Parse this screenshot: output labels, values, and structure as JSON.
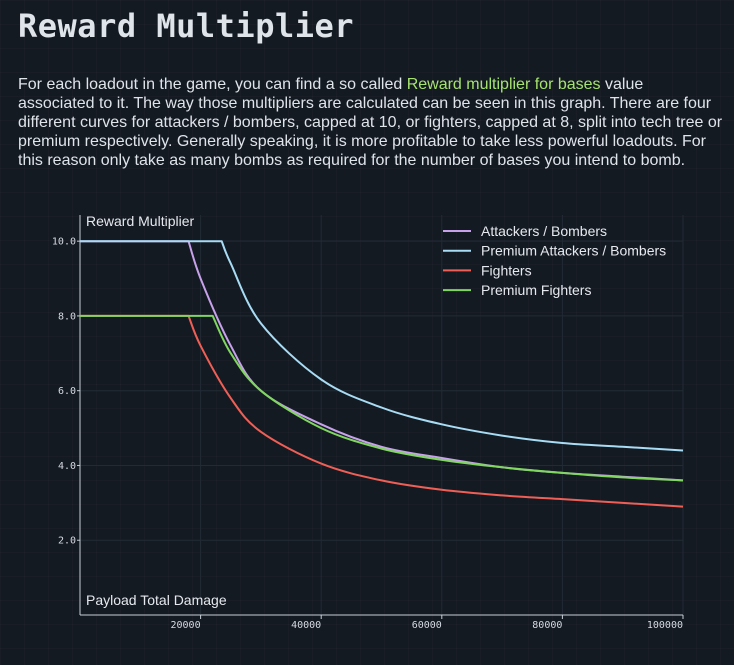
{
  "header": {
    "title": "Reward Multiplier"
  },
  "intro": {
    "text_before": "For each loadout in the game, you can find a so called ",
    "highlight": "Reward multiplier for bases",
    "text_after": " value associated to it. The way those multipliers are calculated can be seen in this graph. There are four different curves for attackers / bombers, capped at 10, or fighters, capped at 8, split into tech tree or premium respectively. Generally speaking, it is more profitable to take less powerful loadouts. For this reason only take as many bombs as required for the number of bases you intend to bomb.",
    "highlight_color": "#a6e36e"
  },
  "chart_data": {
    "type": "line",
    "title": "",
    "xlabel": "Payload Total Damage",
    "ylabel": "Reward Multiplier",
    "xlim": [
      0,
      100000
    ],
    "ylim": [
      0,
      10.7
    ],
    "xticks": [
      20000,
      40000,
      60000,
      80000,
      100000
    ],
    "xtick_labels": [
      "20000",
      "40000",
      "60000",
      "80000",
      "100000"
    ],
    "yticks": [
      2,
      4,
      6,
      8,
      10
    ],
    "ytick_labels": [
      "2.0",
      "4.0",
      "6.0",
      "8.0",
      "10.0"
    ],
    "grid": true,
    "legend_position": "top-right",
    "series": [
      {
        "name": "Attackers / Bombers",
        "color": "#c7a2ea",
        "cap": 10,
        "points": [
          [
            0,
            10
          ],
          [
            18000,
            10
          ],
          [
            20000,
            9.0
          ],
          [
            25000,
            7.2
          ],
          [
            30000,
            6.0
          ],
          [
            40000,
            5.1
          ],
          [
            50000,
            4.5
          ],
          [
            60000,
            4.2
          ],
          [
            70000,
            3.95
          ],
          [
            80000,
            3.8
          ],
          [
            90000,
            3.7
          ],
          [
            100000,
            3.6
          ]
        ]
      },
      {
        "name": "Premium Attackers / Bombers",
        "color": "#a8dcf5",
        "cap": 10,
        "points": [
          [
            0,
            10
          ],
          [
            23500,
            10
          ],
          [
            25000,
            9.4
          ],
          [
            30000,
            7.8
          ],
          [
            40000,
            6.3
          ],
          [
            50000,
            5.55
          ],
          [
            60000,
            5.1
          ],
          [
            70000,
            4.8
          ],
          [
            80000,
            4.6
          ],
          [
            90000,
            4.5
          ],
          [
            100000,
            4.4
          ]
        ]
      },
      {
        "name": "Fighters",
        "color": "#ef5f56",
        "cap": 8,
        "points": [
          [
            0,
            8
          ],
          [
            18000,
            8
          ],
          [
            20000,
            7.2
          ],
          [
            25000,
            5.8
          ],
          [
            30000,
            4.9
          ],
          [
            40000,
            4.05
          ],
          [
            50000,
            3.6
          ],
          [
            60000,
            3.35
          ],
          [
            70000,
            3.2
          ],
          [
            80000,
            3.1
          ],
          [
            90000,
            3.0
          ],
          [
            100000,
            2.9
          ]
        ]
      },
      {
        "name": "Premium Fighters",
        "color": "#7fd760",
        "cap": 8,
        "points": [
          [
            0,
            8
          ],
          [
            22000,
            8
          ],
          [
            25000,
            7.0
          ],
          [
            30000,
            6.0
          ],
          [
            40000,
            5.0
          ],
          [
            50000,
            4.45
          ],
          [
            60000,
            4.15
          ],
          [
            70000,
            3.95
          ],
          [
            80000,
            3.8
          ],
          [
            90000,
            3.68
          ],
          [
            100000,
            3.6
          ]
        ]
      }
    ]
  }
}
